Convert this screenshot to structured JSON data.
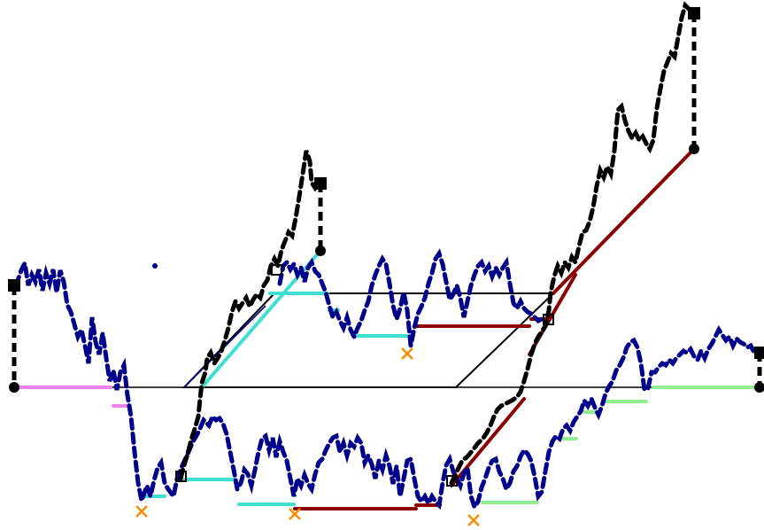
{
  "colors": {
    "background": "#ffffff",
    "dashed_path": "#000000",
    "dashed_wave": "#00008b",
    "outline": "#000000",
    "magenta_segment": "#ee82ee",
    "cyan_segment": "#40e0d0",
    "dark_red_segment": "#8b0000",
    "light_green_segment": "#90ee90",
    "cross_marker": "#ff8c00"
  },
  "markers": {
    "square": "filled-square",
    "circle": "filled-circle",
    "open_square": "open-square",
    "cross": "x-cross"
  }
}
